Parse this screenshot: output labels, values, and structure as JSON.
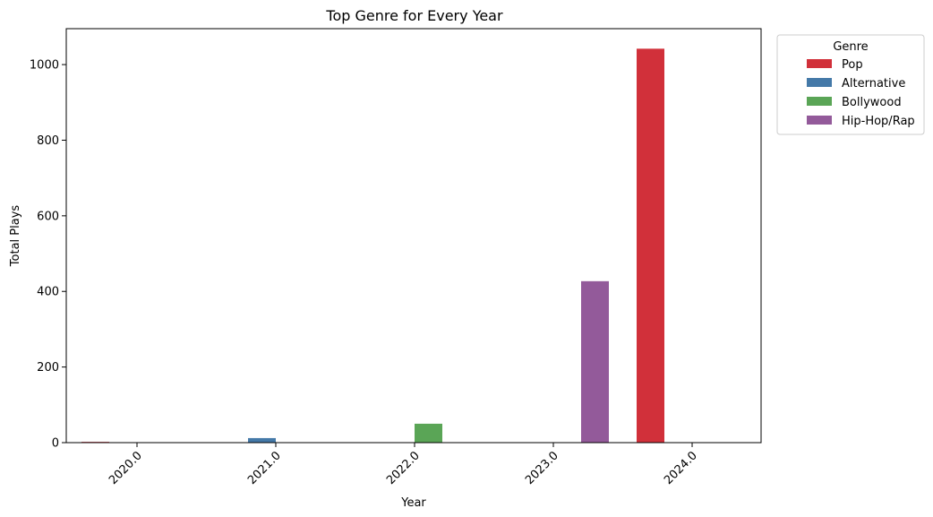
{
  "chart_data": {
    "type": "bar",
    "title": "Top Genre for Every Year",
    "xlabel": "Year",
    "ylabel": "Total Plays",
    "categories": [
      "2020.0",
      "2021.0",
      "2022.0",
      "2023.0",
      "2024.0"
    ],
    "ylim": [
      0,
      1095
    ],
    "yticks": [
      0,
      200,
      400,
      600,
      800,
      1000
    ],
    "grid": false,
    "legend": {
      "title": "Genre",
      "placement": "outside-top-right"
    },
    "series": [
      {
        "name": "Pop",
        "color": "#d1303a",
        "values": [
          2,
          null,
          null,
          null,
          1042
        ]
      },
      {
        "name": "Alternative",
        "color": "#4479a8",
        "values": [
          null,
          12,
          null,
          null,
          null
        ]
      },
      {
        "name": "Bollywood",
        "color": "#5aa556",
        "values": [
          null,
          null,
          50,
          null,
          null
        ]
      },
      {
        "name": "Hip-Hop/Rap",
        "color": "#935a9a",
        "values": [
          null,
          null,
          null,
          427,
          null
        ]
      }
    ]
  }
}
